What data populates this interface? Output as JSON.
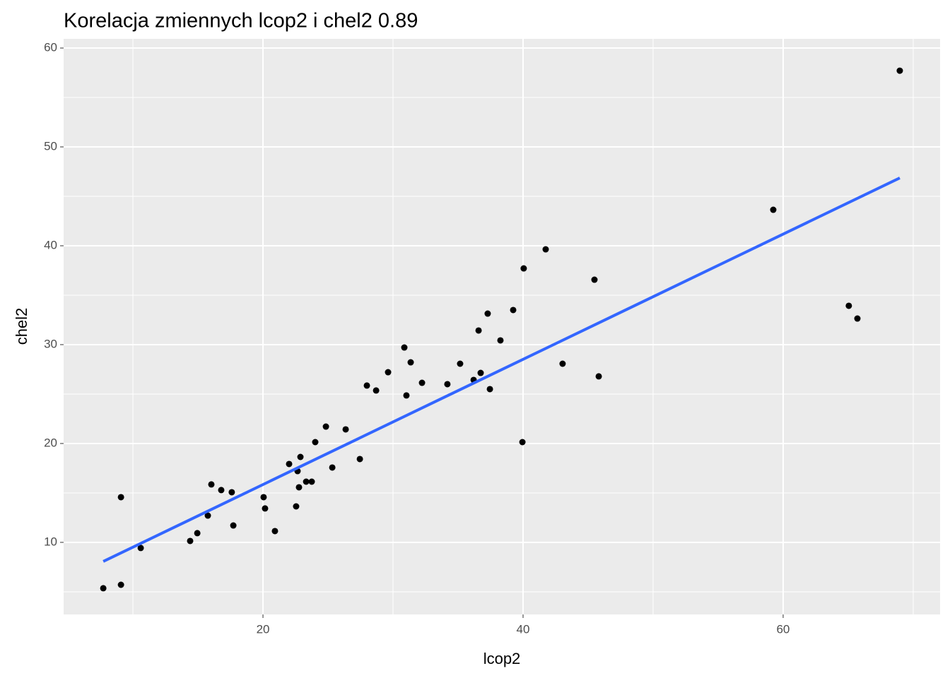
{
  "chart_data": {
    "type": "scatter",
    "title": "Korelacja zmiennych lcop2 i chel2 0.89",
    "x_label": "lcop2",
    "y_label": "chel2",
    "x": [
      7.72,
      9.08,
      9.08,
      10.6,
      14.4,
      14.95,
      15.76,
      16.03,
      16.79,
      17.6,
      17.72,
      20.05,
      20.16,
      20.92,
      22.01,
      22.55,
      22.66,
      22.88,
      22.77,
      23.32,
      23.75,
      24.02,
      24.84,
      25.33,
      26.36,
      27.45,
      27.99,
      28.7,
      29.62,
      30.87,
      31.03,
      31.36,
      32.23,
      34.18,
      35.16,
      36.2,
      36.58,
      36.74,
      37.28,
      37.45,
      38.26,
      39.24,
      39.95,
      40.05,
      41.74,
      43.04,
      45.49,
      45.82,
      59.24,
      65.05,
      65.71,
      68.97
    ],
    "y": [
      5.36,
      5.71,
      14.57,
      9.43,
      10.14,
      10.93,
      12.71,
      15.86,
      15.29,
      15.07,
      11.71,
      14.57,
      13.43,
      11.14,
      17.93,
      13.64,
      17.21,
      18.64,
      15.57,
      16.14,
      16.14,
      20.14,
      21.71,
      17.57,
      21.43,
      18.43,
      25.86,
      25.36,
      27.21,
      29.71,
      24.86,
      28.21,
      26.14,
      26.0,
      28.07,
      26.43,
      31.43,
      27.14,
      33.14,
      25.5,
      30.43,
      33.5,
      20.14,
      37.71,
      39.64,
      28.07,
      36.57,
      26.79,
      43.64,
      33.93,
      32.64,
      57.71
    ],
    "color": "#000000",
    "trend": {
      "x": [
        7.72,
        68.97
      ],
      "y": [
        8.07,
        46.86
      ],
      "color": "#3366ff"
    },
    "xlim": [
      4.67,
      72.07
    ],
    "ylim": [
      2.71,
      60.93
    ],
    "xticks": [
      20,
      40,
      60
    ],
    "yticks": [
      10,
      20,
      30,
      40,
      50,
      60
    ],
    "grid": true,
    "panel_color": "#ebebeb"
  }
}
